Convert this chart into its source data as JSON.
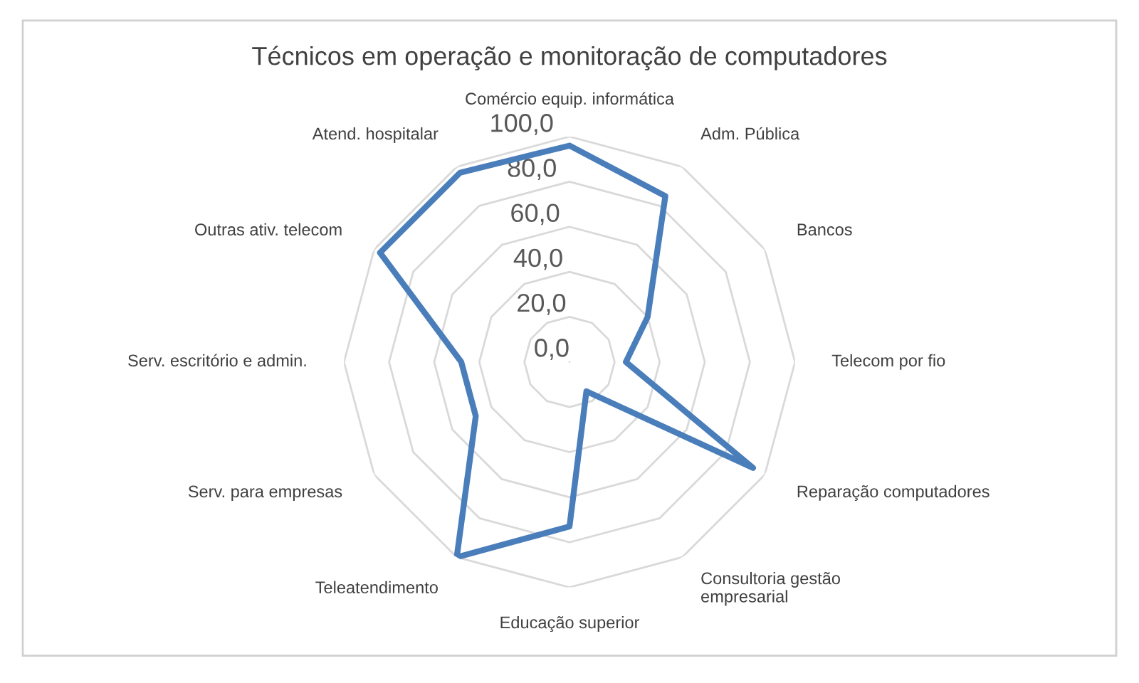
{
  "chart_data": {
    "type": "radar",
    "title": "Técnicos em operação e monitoração de computadores",
    "categories": [
      "Comércio equip. informática",
      "Adm. Pública",
      "Bancos",
      "Telecom por fio",
      "Reparação computadores",
      "Consultoria gestão\nempresarial",
      "Educação superior",
      "Teleatendimento",
      "Serv. para empresas",
      "Serv. escritório e admin.",
      "Outras ativ. telecom",
      "Atend. hospitalar"
    ],
    "series": [
      {
        "color": "#4a7ebb",
        "values": [
          96,
          85,
          40,
          25,
          94,
          15,
          73,
          100,
          48,
          48,
          97,
          97
        ]
      }
    ],
    "ylim": [
      0,
      100
    ],
    "yticks": [
      {
        "value": 0,
        "label": "0,0"
      },
      {
        "value": 20,
        "label": "20,0"
      },
      {
        "value": 40,
        "label": "40,0"
      },
      {
        "value": 60,
        "label": "60,0"
      },
      {
        "value": 80,
        "label": "80,0"
      },
      {
        "value": 100,
        "label": "100,0"
      }
    ],
    "grid": true
  }
}
